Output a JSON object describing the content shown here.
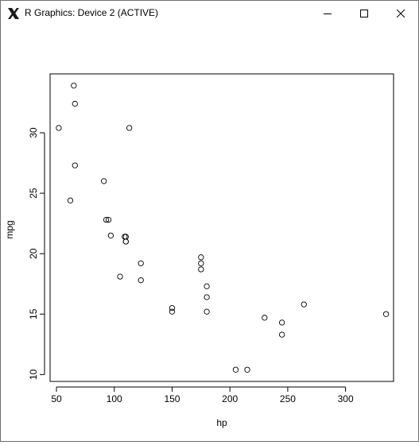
{
  "window": {
    "title": "R Graphics: Device 2 (ACTIVE)",
    "app_icon": "x-window-icon",
    "controls": [
      "minimize-icon",
      "maximize-icon",
      "close-icon"
    ]
  },
  "chart_data": {
    "type": "scatter",
    "xlabel": "hp",
    "ylabel": "mpg",
    "xlim": [
      44.5,
      341.5
    ],
    "ylim": [
      9.43,
      34.87
    ],
    "x_ticks": [
      50,
      100,
      150,
      200,
      250,
      300
    ],
    "y_ticks": [
      10,
      15,
      20,
      25,
      30
    ],
    "x_tick_labels": [
      "50",
      "100",
      "150",
      "200",
      "250",
      "300"
    ],
    "y_tick_labels": [
      "10",
      "15",
      "20",
      "25",
      "30"
    ],
    "marker": "open-circle",
    "grid": false,
    "points": [
      {
        "x": 110,
        "y": 21.0
      },
      {
        "x": 110,
        "y": 21.0
      },
      {
        "x": 93,
        "y": 22.8
      },
      {
        "x": 110,
        "y": 21.4
      },
      {
        "x": 175,
        "y": 18.7
      },
      {
        "x": 105,
        "y": 18.1
      },
      {
        "x": 245,
        "y": 14.3
      },
      {
        "x": 62,
        "y": 24.4
      },
      {
        "x": 95,
        "y": 22.8
      },
      {
        "x": 123,
        "y": 19.2
      },
      {
        "x": 123,
        "y": 17.8
      },
      {
        "x": 180,
        "y": 16.4
      },
      {
        "x": 180,
        "y": 17.3
      },
      {
        "x": 180,
        "y": 15.2
      },
      {
        "x": 205,
        "y": 10.4
      },
      {
        "x": 215,
        "y": 10.4
      },
      {
        "x": 230,
        "y": 14.7
      },
      {
        "x": 66,
        "y": 32.4
      },
      {
        "x": 52,
        "y": 30.4
      },
      {
        "x": 65,
        "y": 33.9
      },
      {
        "x": 97,
        "y": 21.5
      },
      {
        "x": 150,
        "y": 15.5
      },
      {
        "x": 150,
        "y": 15.2
      },
      {
        "x": 245,
        "y": 13.3
      },
      {
        "x": 175,
        "y": 19.2
      },
      {
        "x": 66,
        "y": 27.3
      },
      {
        "x": 91,
        "y": 26.0
      },
      {
        "x": 113,
        "y": 30.4
      },
      {
        "x": 264,
        "y": 15.8
      },
      {
        "x": 175,
        "y": 19.7
      },
      {
        "x": 335,
        "y": 15.0
      },
      {
        "x": 109,
        "y": 21.4
      }
    ]
  }
}
